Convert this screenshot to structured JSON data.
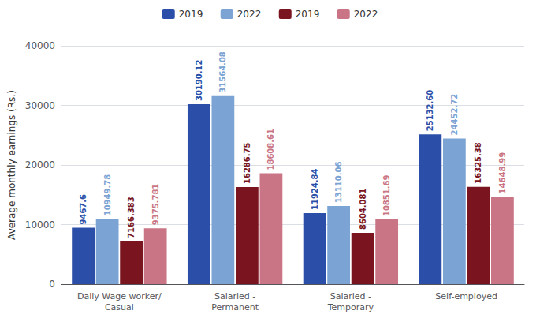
{
  "chart_data": {
    "type": "bar",
    "categories": [
      "Daily Wage worker/\nCasual",
      "Salaried -\nPermanent",
      "Salaried -\nTemporary",
      "Self-employed"
    ],
    "series": [
      {
        "name": "2019",
        "color": "#2b4fa8",
        "values": [
          9467.6,
          30190.12,
          11924.84,
          25132.6
        ],
        "value_labels": [
          "9467.6",
          "30190.12",
          "11924.84",
          "25132.60"
        ]
      },
      {
        "name": "2022",
        "color": "#7ba4d4",
        "values": [
          10949.78,
          31564.08,
          13110.06,
          24452.72
        ],
        "value_labels": [
          "10949.78",
          "31564.08",
          "13110.06",
          "24452.72"
        ]
      },
      {
        "name": "2019",
        "color": "#7a1520",
        "values": [
          7166.383,
          16286.75,
          8604.081,
          16325.38
        ],
        "value_labels": [
          "7166.383",
          "16286.75",
          "8604.081",
          "16325.38"
        ]
      },
      {
        "name": "2022",
        "color": "#c97585",
        "values": [
          9375.781,
          18608.61,
          10851.69,
          14648.99
        ],
        "value_labels": [
          "9375.781",
          "18608.61",
          "10851.69",
          "14648.99"
        ]
      }
    ],
    "ylabel": "Average monthly earnings (Rs.)",
    "ylim": [
      0,
      40000
    ],
    "yticks": [
      0,
      10000,
      20000,
      30000,
      40000
    ],
    "grid": true,
    "legend": "top",
    "data_labels": true
  }
}
